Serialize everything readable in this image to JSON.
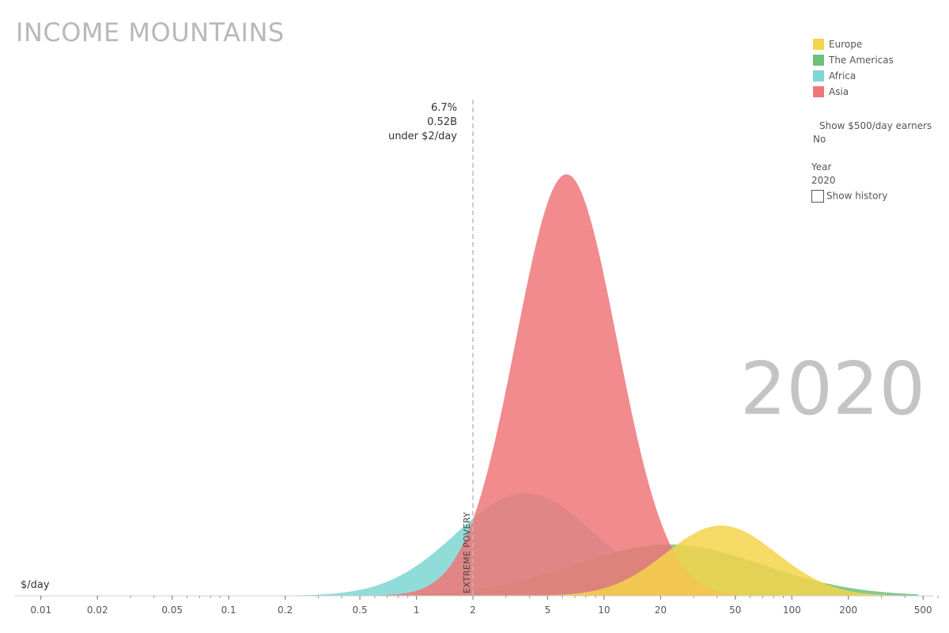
{
  "title": "INCOME MOUNTAINS",
  "big_year": "2020",
  "legend": [
    {
      "name": "Europe",
      "color": "#f5d44b"
    },
    {
      "name": "The Americas",
      "color": "#6cc17a"
    },
    {
      "name": "Africa",
      "color": "#7dd6d1"
    },
    {
      "name": "Asia",
      "color": "#ef7779"
    }
  ],
  "controls": {
    "show500_label": "Show $500/day earners",
    "show500_value": "No",
    "year_label": "Year",
    "year_value": "2020",
    "history_label": "Show history"
  },
  "annotation": {
    "percent": "6.7%",
    "count": "0.52B",
    "text": "under $2/day"
  },
  "poverty_label": "EXTREME POVERY",
  "chart_data": {
    "type": "area",
    "title": "INCOME MOUNTAINS",
    "xlabel": "$/day",
    "xscale": "log",
    "xlim": [
      0.007,
      600
    ],
    "ylim": [
      0,
      100
    ],
    "x_ticks": [
      0.01,
      0.02,
      0.05,
      0.1,
      0.2,
      0.5,
      1,
      2,
      5,
      10,
      20,
      50,
      100,
      200,
      500
    ],
    "x_tick_labels": [
      "0.01",
      "0.02",
      "0.05",
      "0.1",
      "0.2",
      "0.5",
      "1",
      "2",
      "5",
      "10",
      "20",
      "50",
      "100",
      "200",
      "500"
    ],
    "poverty_line": 2,
    "series": [
      {
        "name": "Africa",
        "color": "#7dd6d1",
        "peak_x": 3.8,
        "peak_y": 19,
        "sigma": 0.85
      },
      {
        "name": "The Americas",
        "color": "#6cc17a",
        "peak_x": 22,
        "peak_y": 9.5,
        "sigma": 1.15
      },
      {
        "name": "Asia",
        "color": "#ef7779",
        "peak_x": 6.3,
        "peak_y": 78,
        "sigma": 0.62
      },
      {
        "name": "Europe",
        "color": "#f5d44b",
        "peak_x": 42,
        "peak_y": 13,
        "sigma": 0.68
      }
    ],
    "legend_position": "top-right",
    "grid": false
  }
}
